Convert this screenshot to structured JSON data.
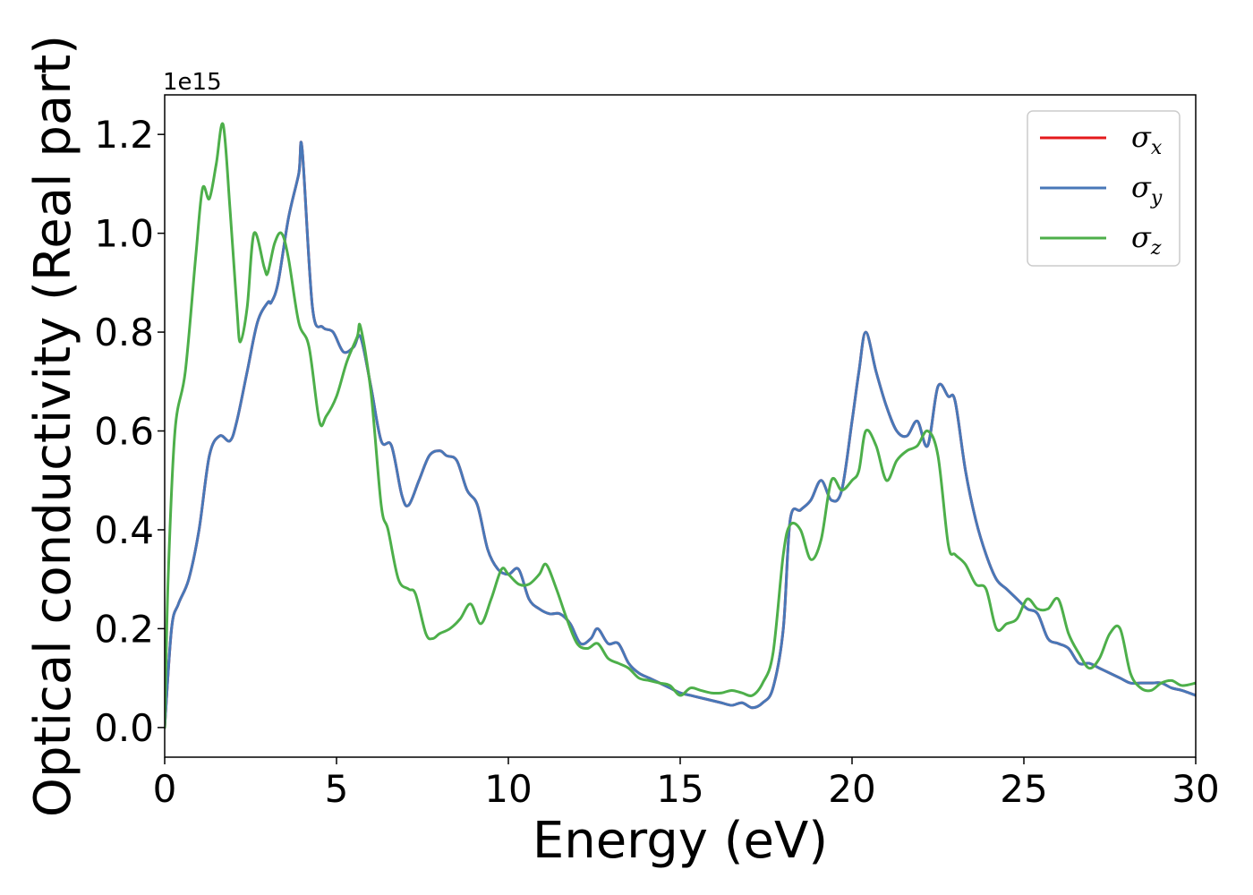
{
  "chart_data": {
    "type": "line",
    "xlabel": "Energy (eV)",
    "ylabel": "Optical conductivity (Real part)",
    "y_offset_label": "1e15",
    "xlim": [
      0,
      30
    ],
    "ylim": [
      -0.06,
      1.28
    ],
    "xticks": [
      0,
      5,
      10,
      15,
      20,
      25,
      30
    ],
    "yticks": [
      0.0,
      0.2,
      0.4,
      0.6,
      0.8,
      1.0,
      1.2
    ],
    "xtick_labels": [
      "0",
      "5",
      "10",
      "15",
      "20",
      "25",
      "30"
    ],
    "ytick_labels": [
      "0.0",
      "0.2",
      "0.4",
      "0.6",
      "0.8",
      "1.0",
      "1.2"
    ],
    "grid": false,
    "legend": "top-right",
    "series": [
      {
        "name": "σx",
        "symbol": "σ",
        "subscript": "x",
        "color": "#e41a1c",
        "x": [
          0,
          0.2,
          0.4,
          0.7,
          1.0,
          1.3,
          1.6,
          1.9,
          2.1,
          2.4,
          2.7,
          3.0,
          3.1,
          3.3,
          3.6,
          3.9,
          4.0,
          4.3,
          4.6,
          4.9,
          5.2,
          5.5,
          5.7,
          6.0,
          6.3,
          6.6,
          6.9,
          7.1,
          7.4,
          7.7,
          8.0,
          8.2,
          8.5,
          8.8,
          9.1,
          9.4,
          9.7,
          10.0,
          10.3,
          10.6,
          10.9,
          11.2,
          11.5,
          11.8,
          12.1,
          12.4,
          12.6,
          12.9,
          13.2,
          13.5,
          13.8,
          14.1,
          14.4,
          14.7,
          15.0,
          15.3,
          15.6,
          15.9,
          16.2,
          16.5,
          16.8,
          17.1,
          17.4,
          17.7,
          18.0,
          18.2,
          18.5,
          18.8,
          19.1,
          19.4,
          19.7,
          20.0,
          20.2,
          20.4,
          20.7,
          21.0,
          21.3,
          21.6,
          21.9,
          22.2,
          22.5,
          22.8,
          23.0,
          23.3,
          23.6,
          23.9,
          24.2,
          24.5,
          24.8,
          25.1,
          25.4,
          25.7,
          26.0,
          26.3,
          26.6,
          26.9,
          27.2,
          27.5,
          27.8,
          28.1,
          28.4,
          28.7,
          29.0,
          29.3,
          29.6,
          30.0
        ],
        "y": [
          0.0,
          0.2,
          0.25,
          0.3,
          0.4,
          0.55,
          0.59,
          0.58,
          0.62,
          0.72,
          0.82,
          0.86,
          0.86,
          0.9,
          1.03,
          1.12,
          1.17,
          0.85,
          0.81,
          0.8,
          0.76,
          0.77,
          0.79,
          0.69,
          0.58,
          0.57,
          0.47,
          0.45,
          0.5,
          0.55,
          0.56,
          0.55,
          0.54,
          0.48,
          0.45,
          0.36,
          0.32,
          0.31,
          0.32,
          0.26,
          0.24,
          0.23,
          0.23,
          0.21,
          0.17,
          0.18,
          0.2,
          0.17,
          0.17,
          0.13,
          0.11,
          0.1,
          0.09,
          0.08,
          0.07,
          0.065,
          0.06,
          0.055,
          0.05,
          0.045,
          0.05,
          0.04,
          0.05,
          0.08,
          0.2,
          0.42,
          0.44,
          0.46,
          0.5,
          0.46,
          0.48,
          0.62,
          0.72,
          0.8,
          0.72,
          0.65,
          0.6,
          0.59,
          0.62,
          0.57,
          0.69,
          0.67,
          0.66,
          0.52,
          0.42,
          0.35,
          0.3,
          0.28,
          0.26,
          0.24,
          0.23,
          0.18,
          0.17,
          0.16,
          0.13,
          0.13,
          0.12,
          0.11,
          0.1,
          0.09,
          0.09,
          0.09,
          0.09,
          0.08,
          0.075,
          0.065
        ]
      },
      {
        "name": "σy",
        "symbol": "σ",
        "subscript": "y",
        "color": "#4878b8",
        "x": [
          0,
          0.2,
          0.4,
          0.7,
          1.0,
          1.3,
          1.6,
          1.9,
          2.1,
          2.4,
          2.7,
          3.0,
          3.1,
          3.3,
          3.6,
          3.9,
          4.0,
          4.3,
          4.6,
          4.9,
          5.2,
          5.5,
          5.7,
          6.0,
          6.3,
          6.6,
          6.9,
          7.1,
          7.4,
          7.7,
          8.0,
          8.2,
          8.5,
          8.8,
          9.1,
          9.4,
          9.7,
          10.0,
          10.3,
          10.6,
          10.9,
          11.2,
          11.5,
          11.8,
          12.1,
          12.4,
          12.6,
          12.9,
          13.2,
          13.5,
          13.8,
          14.1,
          14.4,
          14.7,
          15.0,
          15.3,
          15.6,
          15.9,
          16.2,
          16.5,
          16.8,
          17.1,
          17.4,
          17.7,
          18.0,
          18.2,
          18.5,
          18.8,
          19.1,
          19.4,
          19.7,
          20.0,
          20.2,
          20.4,
          20.7,
          21.0,
          21.3,
          21.6,
          21.9,
          22.2,
          22.5,
          22.8,
          23.0,
          23.3,
          23.6,
          23.9,
          24.2,
          24.5,
          24.8,
          25.1,
          25.4,
          25.7,
          26.0,
          26.3,
          26.6,
          26.9,
          27.2,
          27.5,
          27.8,
          28.1,
          28.4,
          28.7,
          29.0,
          29.3,
          29.6,
          30.0
        ],
        "y": [
          0.0,
          0.2,
          0.25,
          0.3,
          0.4,
          0.55,
          0.59,
          0.58,
          0.62,
          0.72,
          0.82,
          0.86,
          0.86,
          0.9,
          1.03,
          1.12,
          1.17,
          0.85,
          0.81,
          0.8,
          0.76,
          0.77,
          0.79,
          0.69,
          0.58,
          0.57,
          0.47,
          0.45,
          0.5,
          0.55,
          0.56,
          0.55,
          0.54,
          0.48,
          0.45,
          0.36,
          0.32,
          0.31,
          0.32,
          0.26,
          0.24,
          0.23,
          0.23,
          0.21,
          0.17,
          0.18,
          0.2,
          0.17,
          0.17,
          0.13,
          0.11,
          0.1,
          0.09,
          0.08,
          0.07,
          0.065,
          0.06,
          0.055,
          0.05,
          0.045,
          0.05,
          0.04,
          0.05,
          0.08,
          0.2,
          0.42,
          0.44,
          0.46,
          0.5,
          0.46,
          0.48,
          0.62,
          0.72,
          0.8,
          0.72,
          0.65,
          0.6,
          0.59,
          0.62,
          0.57,
          0.69,
          0.67,
          0.66,
          0.52,
          0.42,
          0.35,
          0.3,
          0.28,
          0.26,
          0.24,
          0.23,
          0.18,
          0.17,
          0.16,
          0.13,
          0.13,
          0.12,
          0.11,
          0.1,
          0.09,
          0.09,
          0.09,
          0.09,
          0.08,
          0.075,
          0.065
        ]
      },
      {
        "name": "σz",
        "symbol": "σ",
        "subscript": "z",
        "color": "#4daf4a",
        "x": [
          0,
          0.1,
          0.3,
          0.6,
          0.9,
          1.1,
          1.3,
          1.5,
          1.7,
          1.9,
          2.1,
          2.2,
          2.4,
          2.6,
          2.9,
          3.0,
          3.2,
          3.4,
          3.6,
          3.9,
          4.2,
          4.5,
          4.7,
          5.0,
          5.3,
          5.6,
          5.7,
          6.0,
          6.3,
          6.5,
          6.8,
          7.1,
          7.3,
          7.6,
          7.8,
          8.0,
          8.3,
          8.6,
          8.9,
          9.2,
          9.5,
          9.8,
          10.0,
          10.3,
          10.6,
          10.9,
          11.1,
          11.4,
          11.7,
          12.0,
          12.3,
          12.6,
          12.9,
          13.2,
          13.5,
          13.8,
          14.1,
          14.4,
          14.7,
          15.0,
          15.3,
          15.6,
          15.9,
          16.2,
          16.5,
          16.8,
          17.1,
          17.4,
          17.7,
          18.0,
          18.2,
          18.5,
          18.8,
          19.1,
          19.4,
          19.7,
          20.0,
          20.2,
          20.4,
          20.7,
          21.0,
          21.3,
          21.6,
          21.9,
          22.2,
          22.5,
          22.8,
          23.0,
          23.3,
          23.6,
          23.9,
          24.2,
          24.5,
          24.8,
          25.1,
          25.4,
          25.7,
          26.0,
          26.3,
          26.6,
          26.9,
          27.2,
          27.5,
          27.8,
          28.1,
          28.4,
          28.7,
          29.0,
          29.3,
          29.6,
          30.0
        ],
        "y": [
          0.0,
          0.3,
          0.6,
          0.72,
          0.95,
          1.09,
          1.07,
          1.14,
          1.22,
          1.05,
          0.85,
          0.78,
          0.85,
          1.0,
          0.93,
          0.92,
          0.98,
          1.0,
          0.95,
          0.82,
          0.77,
          0.62,
          0.63,
          0.67,
          0.74,
          0.79,
          0.81,
          0.68,
          0.45,
          0.4,
          0.3,
          0.28,
          0.27,
          0.19,
          0.18,
          0.19,
          0.2,
          0.22,
          0.25,
          0.21,
          0.26,
          0.32,
          0.31,
          0.29,
          0.29,
          0.31,
          0.33,
          0.28,
          0.22,
          0.17,
          0.16,
          0.17,
          0.14,
          0.13,
          0.12,
          0.1,
          0.095,
          0.09,
          0.085,
          0.065,
          0.08,
          0.075,
          0.07,
          0.07,
          0.075,
          0.07,
          0.065,
          0.09,
          0.15,
          0.35,
          0.41,
          0.4,
          0.34,
          0.38,
          0.5,
          0.48,
          0.5,
          0.52,
          0.6,
          0.57,
          0.5,
          0.54,
          0.56,
          0.57,
          0.6,
          0.55,
          0.37,
          0.35,
          0.33,
          0.29,
          0.28,
          0.2,
          0.21,
          0.22,
          0.26,
          0.24,
          0.24,
          0.26,
          0.19,
          0.15,
          0.12,
          0.14,
          0.19,
          0.2,
          0.11,
          0.08,
          0.075,
          0.09,
          0.095,
          0.085,
          0.09
        ]
      }
    ]
  }
}
